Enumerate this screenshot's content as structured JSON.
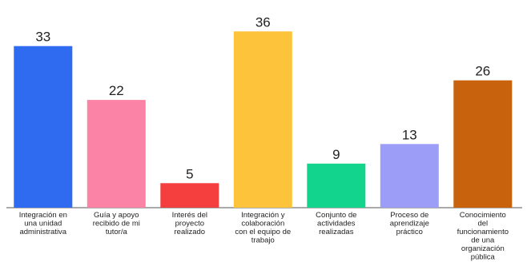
{
  "chart_data": {
    "type": "bar",
    "title": "",
    "xlabel": "",
    "ylabel": "",
    "ylim": [
      0,
      40
    ],
    "grid": false,
    "legend": "none",
    "categories": [
      [
        "Integración en",
        "una unidad",
        "administrativa"
      ],
      [
        "Guía y apoyo",
        "recibido de mi",
        "tutor/a"
      ],
      [
        "Interés del",
        "proyecto",
        "realizado"
      ],
      [
        "Integración y",
        "colaboración",
        "con el equipo de",
        "trabajo"
      ],
      [
        "Conjunto de",
        "actividades",
        "realizadas"
      ],
      [
        "Proceso de",
        "aprendizaje",
        "práctico"
      ],
      [
        "Conocimiento",
        "del",
        "funcionamiento",
        "de una",
        "organización",
        "pública"
      ]
    ],
    "values": [
      33,
      22,
      5,
      36,
      9,
      13,
      26
    ],
    "data_labels": [
      "33",
      "22",
      "5",
      "36",
      "9",
      "13",
      "26"
    ],
    "colors": [
      "#2f6bf0",
      "#fb83a5",
      "#f53f3f",
      "#fdc33a",
      "#12d48c",
      "#9b9df7",
      "#c8620c"
    ]
  }
}
